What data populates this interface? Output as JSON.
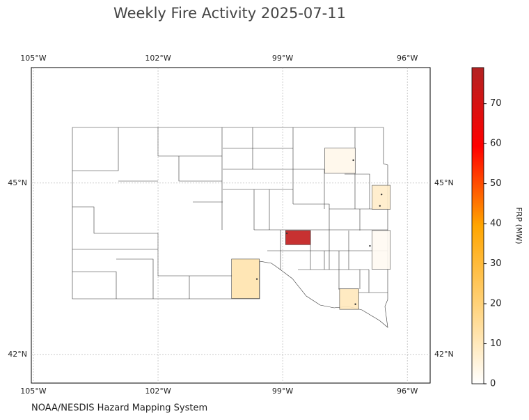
{
  "chart_data": {
    "type": "map",
    "title": "Weekly Fire Activity 2025-07-11",
    "source": "NOAA/NESDIS Hazard Mapping System",
    "xlim": [
      -105.05,
      -95.45
    ],
    "ylim": [
      41.5,
      47.02
    ],
    "xticks": [
      {
        "value": -105,
        "label": "105°W"
      },
      {
        "value": -102,
        "label": "102°W"
      },
      {
        "value": -99,
        "label": "99°W"
      },
      {
        "value": -96,
        "label": "96°W"
      }
    ],
    "yticks": [
      {
        "value": 42,
        "label": "42°N"
      },
      {
        "value": 45,
        "label": "45°N"
      }
    ],
    "grid": true,
    "colorbar": {
      "label": "FRP (MW)",
      "lim": [
        0,
        79
      ],
      "ticks": [
        0,
        10,
        20,
        30,
        40,
        50,
        60,
        70
      ],
      "colormap": [
        "#ffffff",
        "#ffd27a",
        "#ffa500",
        "#ff0000",
        "#b22222"
      ]
    },
    "counties": [
      {
        "lon": [
          -98.93,
          -98.33
        ],
        "lat": [
          43.92,
          44.17
        ],
        "value": 75
      },
      {
        "lon": [
          -97.99,
          -97.25
        ],
        "lat": [
          45.17,
          45.61
        ],
        "value": 3
      },
      {
        "lon": [
          -96.85,
          -96.41
        ],
        "lat": [
          44.54,
          44.96
        ],
        "value": 8
      },
      {
        "lon": [
          -96.85,
          -96.41
        ],
        "lat": [
          43.49,
          44.17
        ],
        "value": 2
      },
      {
        "lon": [
          -100.23,
          -99.56
        ],
        "lat": [
          42.98,
          43.67
        ],
        "value": 12
      },
      {
        "lon": [
          -97.63,
          -97.17
        ],
        "lat": [
          42.79,
          43.15
        ],
        "value": 10
      }
    ],
    "fires": {
      "lon": [
        -97.3,
        -96.62,
        -96.66,
        -98.9,
        -96.9,
        -99.62,
        -97.25
      ],
      "lat": [
        45.4,
        44.8,
        44.6,
        44.12,
        43.9,
        43.32,
        42.88
      ]
    }
  }
}
